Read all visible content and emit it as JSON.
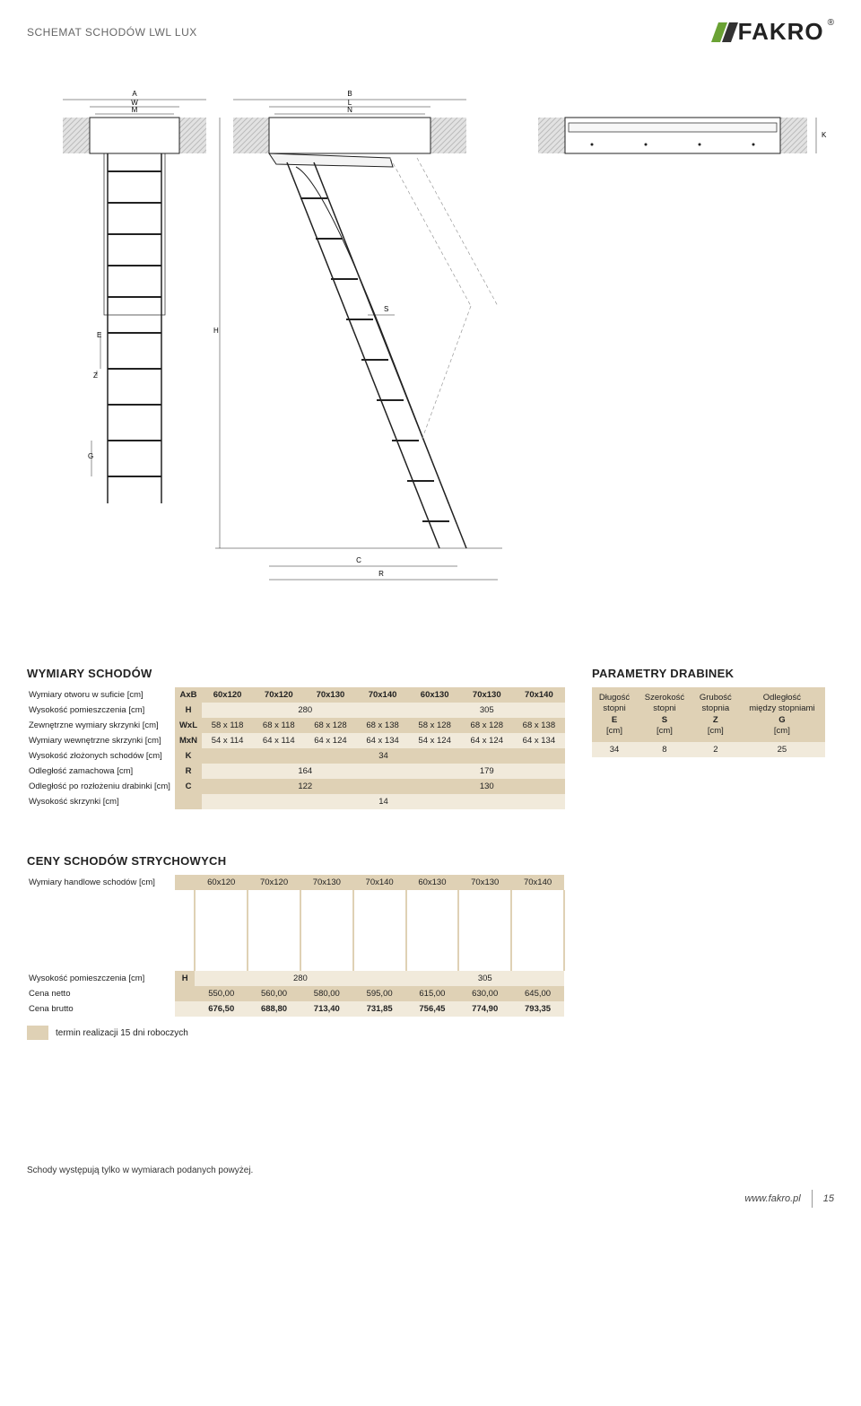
{
  "meta": {
    "title": "SCHEMAT SCHODÓW LWL LUX",
    "brand": "FAKRO",
    "brand_colors": {
      "green": "#6aa234",
      "dark": "#333333"
    }
  },
  "diagram_labels": [
    "A",
    "W",
    "M",
    "B",
    "L",
    "N",
    "H",
    "E",
    "Z",
    "G",
    "S",
    "C",
    "R",
    "K"
  ],
  "sections": {
    "dims_title": "WYMIARY SCHODÓW",
    "params_title": "PARAMETRY DRABINEK",
    "prices_title": "CENY SCHODÓW STRYCHOWYCH"
  },
  "dims": {
    "columns": [
      "60x120",
      "70x120",
      "70x130",
      "70x140",
      "60x130",
      "70x130",
      "70x140"
    ],
    "rows": [
      {
        "label": "Wymiary otworu w suficie [cm]",
        "sym": "AxB",
        "cells": [
          "60x120",
          "70x120",
          "70x130",
          "70x140",
          "60x130",
          "70x130",
          "70x140"
        ],
        "bg": "even",
        "sym_bold": true,
        "cell_bold": true
      },
      {
        "label": "Wysokość pomieszczenia [cm]",
        "sym": "H",
        "merge": [
          {
            "span": 4,
            "text": "280"
          },
          {
            "span": 3,
            "text": "305"
          }
        ],
        "bg": "odd"
      },
      {
        "label": "Zewnętrzne wymiary skrzynki [cm]",
        "sym": "WxL",
        "cells": [
          "58 x 118",
          "68 x 118",
          "68 x 128",
          "68 x 138",
          "58 x 128",
          "68 x 128",
          "68 x 138"
        ],
        "bg": "even"
      },
      {
        "label": "Wymiary wewnętrzne skrzynki [cm]",
        "sym": "MxN",
        "cells": [
          "54 x 114",
          "64 x 114",
          "64 x 124",
          "64 x 134",
          "54 x 124",
          "64 x 124",
          "64 x 134"
        ],
        "bg": "odd"
      },
      {
        "label": "Wysokość złożonych schodów [cm]",
        "sym": "K",
        "merge": [
          {
            "span": 7,
            "text": "34"
          }
        ],
        "bg": "even"
      },
      {
        "label": "Odległość zamachowa [cm]",
        "sym": "R",
        "merge": [
          {
            "span": 4,
            "text": "164"
          },
          {
            "span": 3,
            "text": "179"
          }
        ],
        "bg": "odd"
      },
      {
        "label": "Odległość po rozłożeniu drabinki [cm]",
        "sym": "C",
        "merge": [
          {
            "span": 4,
            "text": "122"
          },
          {
            "span": 3,
            "text": "130"
          }
        ],
        "bg": "even"
      },
      {
        "label": "Wysokość skrzynki [cm]",
        "sym": "",
        "merge": [
          {
            "span": 7,
            "text": "14"
          }
        ],
        "bg": "odd"
      }
    ]
  },
  "params": {
    "headers": [
      {
        "l1": "Długość",
        "l2": "stopni",
        "sym": "E",
        "unit": "[cm]"
      },
      {
        "l1": "Szerokość",
        "l2": "stopni",
        "sym": "S",
        "unit": "[cm]"
      },
      {
        "l1": "Grubość",
        "l2": "stopnia",
        "sym": "Z",
        "unit": "[cm]"
      },
      {
        "l1": "Odległość",
        "l2": "między stopniami",
        "sym": "G",
        "unit": "[cm]"
      }
    ],
    "values": [
      "34",
      "8",
      "2",
      "25"
    ]
  },
  "prices": {
    "row_header_label": "Wymiary handlowe schodów [cm]",
    "columns": [
      "60x120",
      "70x120",
      "70x130",
      "70x140",
      "60x130",
      "70x130",
      "70x140"
    ],
    "height_row": {
      "label": "Wysokość pomieszczenia [cm]",
      "sym": "H",
      "merge": [
        {
          "span": 4,
          "text": "280"
        },
        {
          "span": 3,
          "text": "305"
        }
      ]
    },
    "netto": {
      "label": "Cena netto",
      "cells": [
        "550,00",
        "560,00",
        "580,00",
        "595,00",
        "615,00",
        "630,00",
        "645,00"
      ]
    },
    "brutto": {
      "label": "Cena brutto",
      "cells": [
        "676,50",
        "688,80",
        "713,40",
        "731,85",
        "756,45",
        "774,90",
        "793,35"
      ]
    },
    "termin": "termin realizacji 15 dni roboczych"
  },
  "footer": {
    "note": "Schody występują tylko w wymiarach podanych powyżej.",
    "url": "www.fakro.pl",
    "page": "15"
  },
  "colors": {
    "band_light": "#f1eadb",
    "band_dark": "#dfd1b5",
    "text": "#222222",
    "muted": "#666666"
  }
}
